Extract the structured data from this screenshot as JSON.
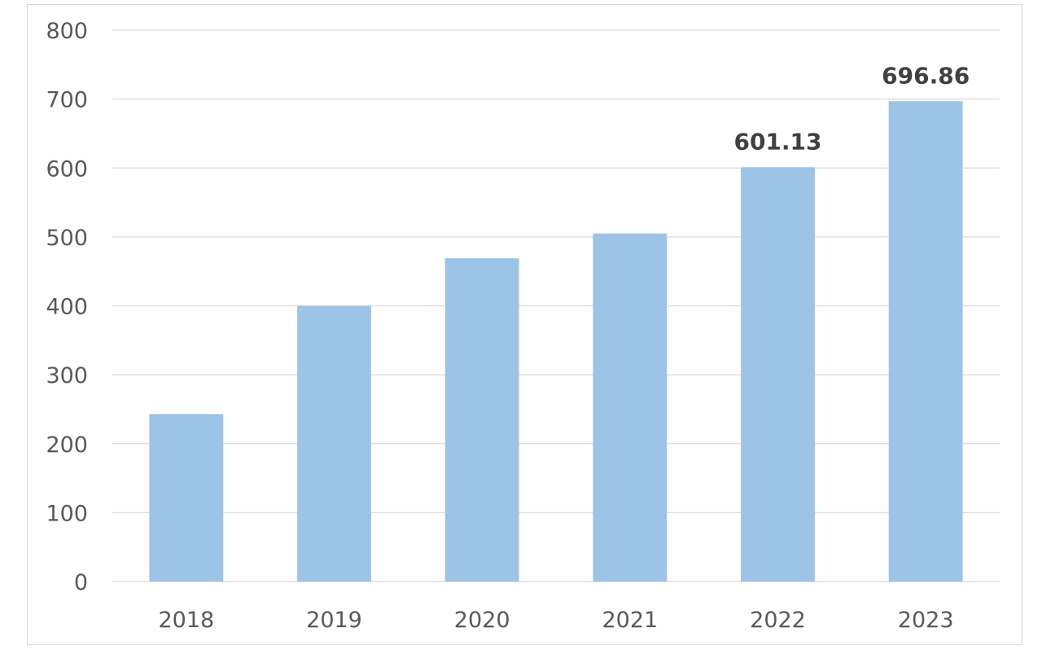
{
  "chart_data": {
    "type": "bar",
    "title": "",
    "xlabel": "",
    "ylabel": "",
    "categories": [
      "2018",
      "2019",
      "2020",
      "2021",
      "2022",
      "2023"
    ],
    "values": [
      243,
      400,
      469,
      505,
      601.13,
      696.86
    ],
    "data_labels": [
      "",
      "",
      "",
      "",
      "601.13",
      "696.86"
    ],
    "ylim": [
      0,
      800
    ],
    "yticks": [
      0,
      100,
      200,
      300,
      400,
      500,
      600,
      700,
      800
    ],
    "ytick_labels": [
      "0",
      "100",
      "200",
      "300",
      "400",
      "500",
      "600",
      "700",
      "800"
    ],
    "grid": true,
    "legend": "none",
    "colors": {
      "bar": "#9dc3e6",
      "grid": "#d9d9d9",
      "tick_text": "#595959",
      "label_text": "#404040"
    }
  }
}
